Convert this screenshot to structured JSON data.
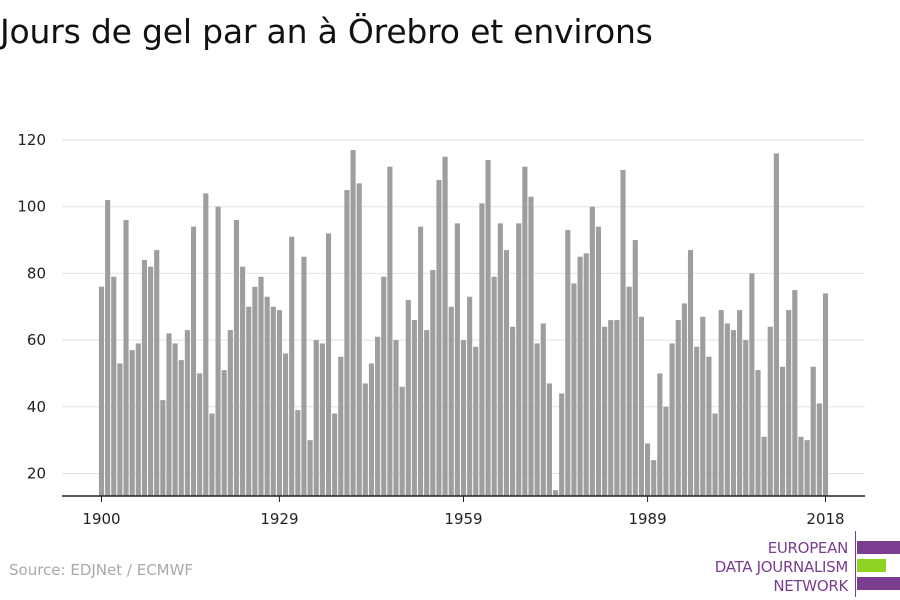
{
  "source": "Source: EDJNet / ECMWF",
  "logo": {
    "lines": [
      "EUROPEAN",
      "DATA JOURNALISM",
      "NETWORK"
    ],
    "colors": {
      "purple": "#7a3d8f",
      "green": "#8ed321"
    }
  },
  "chart_data": {
    "type": "bar",
    "title": "Jours de gel par an à Örebro et environs",
    "xlabel": "",
    "ylabel": "",
    "x_ticks": [
      1900,
      1929,
      1959,
      1989,
      2018
    ],
    "y_ticks": [
      20,
      40,
      60,
      80,
      100,
      120
    ],
    "xlim": [
      1900,
      2018
    ],
    "ylim": [
      13,
      125
    ],
    "grid": true,
    "bar_color": "#9e9e9e",
    "categories": [
      1900,
      1901,
      1902,
      1903,
      1904,
      1905,
      1906,
      1907,
      1908,
      1909,
      1910,
      1911,
      1912,
      1913,
      1914,
      1915,
      1916,
      1917,
      1918,
      1919,
      1920,
      1921,
      1922,
      1923,
      1924,
      1925,
      1926,
      1927,
      1928,
      1929,
      1930,
      1931,
      1932,
      1933,
      1934,
      1935,
      1936,
      1937,
      1938,
      1939,
      1940,
      1941,
      1942,
      1943,
      1944,
      1945,
      1946,
      1947,
      1948,
      1949,
      1950,
      1951,
      1952,
      1953,
      1954,
      1955,
      1956,
      1957,
      1958,
      1959,
      1960,
      1961,
      1962,
      1963,
      1964,
      1965,
      1966,
      1967,
      1968,
      1969,
      1970,
      1971,
      1972,
      1973,
      1974,
      1975,
      1976,
      1977,
      1978,
      1979,
      1980,
      1981,
      1982,
      1983,
      1984,
      1985,
      1986,
      1987,
      1988,
      1989,
      1990,
      1991,
      1992,
      1993,
      1994,
      1995,
      1996,
      1997,
      1998,
      1999,
      2000,
      2001,
      2002,
      2003,
      2004,
      2005,
      2006,
      2007,
      2008,
      2009,
      2010,
      2011,
      2012,
      2013,
      2014,
      2015,
      2016,
      2017,
      2018
    ],
    "values": [
      76,
      102,
      79,
      53,
      96,
      57,
      59,
      84,
      82,
      87,
      42,
      62,
      59,
      54,
      63,
      94,
      50,
      104,
      38,
      100,
      51,
      63,
      96,
      82,
      70,
      76,
      79,
      73,
      70,
      69,
      56,
      91,
      39,
      85,
      30,
      60,
      59,
      92,
      38,
      55,
      105,
      117,
      107,
      47,
      53,
      61,
      79,
      112,
      60,
      46,
      72,
      66,
      94,
      63,
      81,
      108,
      115,
      70,
      95,
      60,
      73,
      58,
      101,
      114,
      79,
      95,
      87,
      64,
      95,
      112,
      103,
      59,
      65,
      47,
      15,
      44,
      93,
      77,
      85,
      86,
      100,
      94,
      64,
      66,
      66,
      111,
      76,
      90,
      67,
      29,
      24,
      50,
      40,
      59,
      66,
      71,
      87,
      58,
      67,
      55,
      38,
      69,
      65,
      63,
      69,
      60,
      80,
      51,
      31,
      64,
      116,
      52,
      69,
      75,
      31,
      30,
      52,
      41,
      74
    ]
  }
}
